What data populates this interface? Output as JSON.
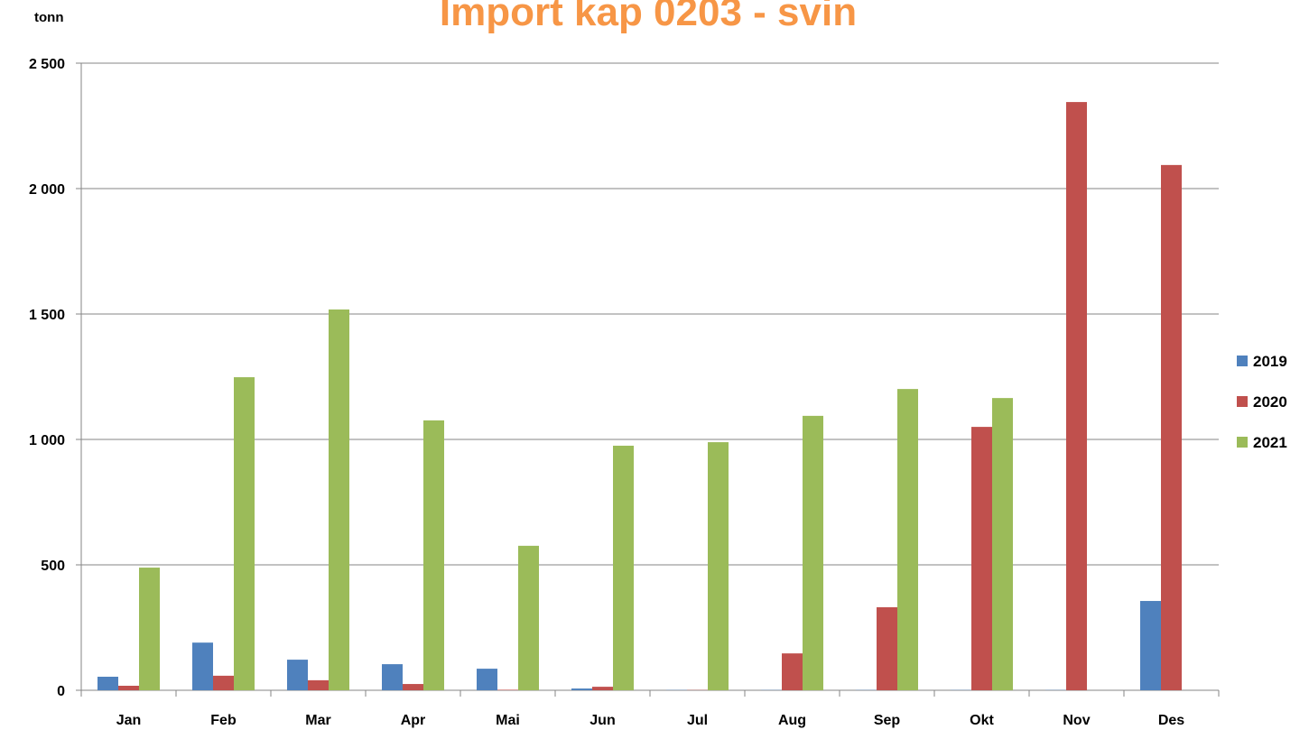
{
  "chart_data": {
    "type": "bar",
    "title": "Import kap 0203 - svin",
    "y_label": "tonn",
    "categories": [
      "Jan",
      "Feb",
      "Mar",
      "Apr",
      "Mai",
      "Jun",
      "Jul",
      "Aug",
      "Sep",
      "Okt",
      "Nov",
      "Des"
    ],
    "series": [
      {
        "name": "2019",
        "color": "#4f81bd",
        "values": [
          54,
          190,
          122,
          104,
          86,
          7,
          1,
          1,
          1,
          1,
          1,
          356
        ]
      },
      {
        "name": "2020",
        "color": "#c0504d",
        "values": [
          18,
          58,
          40,
          25,
          2,
          14,
          1,
          147,
          331,
          1050,
          2345,
          2094
        ]
      },
      {
        "name": "2021",
        "color": "#9bbb59",
        "values": [
          489,
          1248,
          1518,
          1076,
          576,
          975,
          989,
          1094,
          1201,
          1165,
          null,
          null
        ]
      }
    ],
    "ylim": [
      0,
      2500
    ],
    "yticks": [
      0,
      500,
      {
        "value": 1000,
        "label": "1 000"
      },
      {
        "value": 1500,
        "label": "1 500"
      },
      {
        "value": 2000,
        "label": "2 000"
      },
      {
        "value": 2500,
        "label": "2 500"
      }
    ],
    "grid": true,
    "legend": "right"
  }
}
